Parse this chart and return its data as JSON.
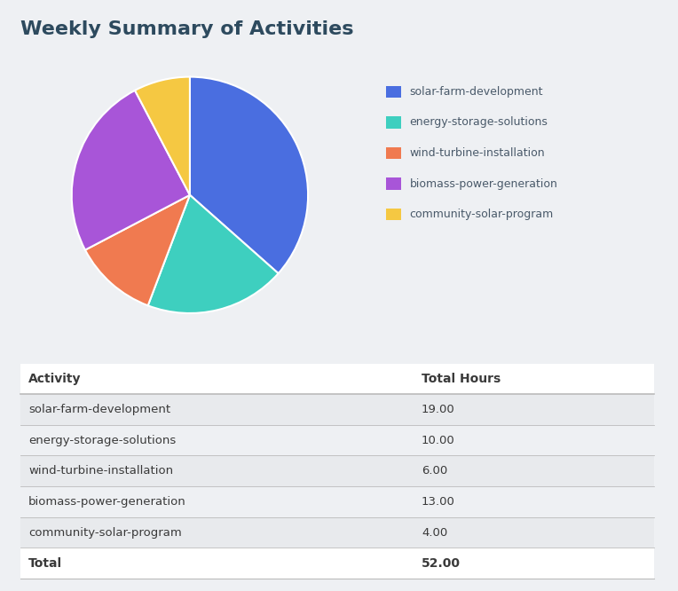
{
  "title": "Weekly Summary of Activities",
  "title_color": "#2d4a5e",
  "background_color": "#eef0f3",
  "pie_colors": [
    "#4a6ee0",
    "#3ecfbf",
    "#f07a50",
    "#a855d8",
    "#f5c842"
  ],
  "labels": [
    "solar-farm-development",
    "energy-storage-solutions",
    "wind-turbine-installation",
    "biomass-power-generation",
    "community-solar-program"
  ],
  "values": [
    19.0,
    10.0,
    6.0,
    13.0,
    4.0
  ],
  "table_header": [
    "Activity",
    "Total Hours"
  ],
  "table_rows": [
    [
      "solar-farm-development",
      "19.00"
    ],
    [
      "energy-storage-solutions",
      "10.00"
    ],
    [
      "wind-turbine-installation",
      "6.00"
    ],
    [
      "biomass-power-generation",
      "13.00"
    ],
    [
      "community-solar-program",
      "4.00"
    ]
  ],
  "total_label": "Total",
  "total_value": "52.00",
  "table_bg_odd": "#e8eaed",
  "table_bg_even": "#eef0f3",
  "table_line_color": "#bbbbbb",
  "text_color": "#3a3a3a",
  "legend_text_color": "#4a5a6a"
}
